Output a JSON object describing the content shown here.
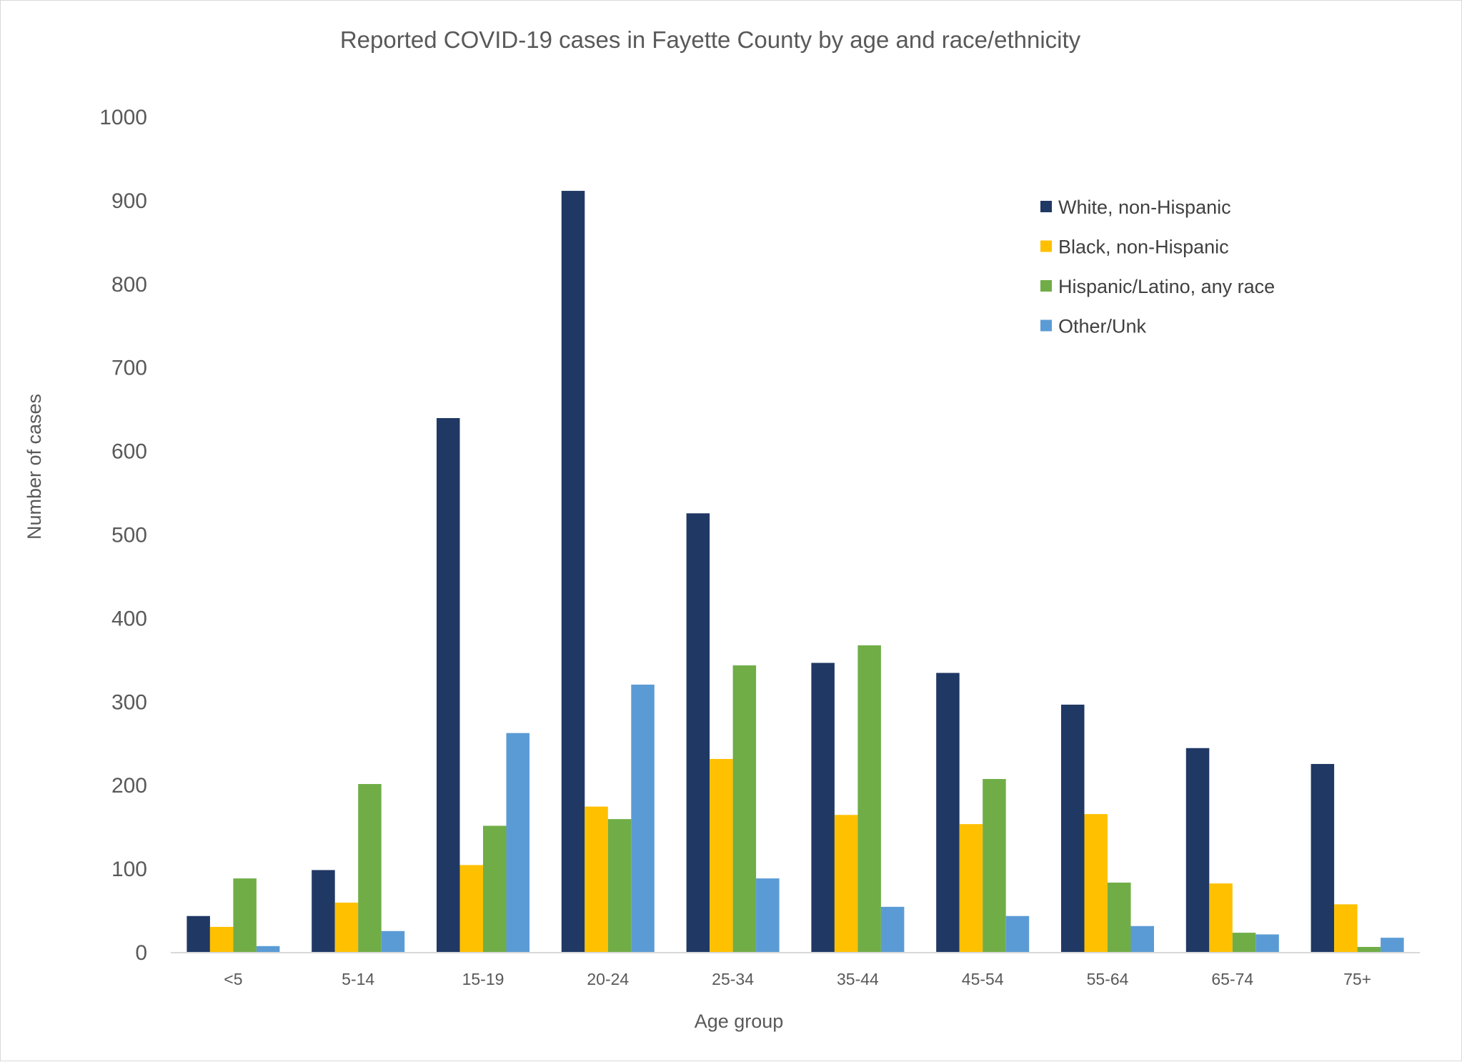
{
  "chart_data": {
    "type": "bar",
    "title": "Reported COVID-19 cases in Fayette County by age and race/ethnicity",
    "xlabel": "Age group",
    "ylabel": "Number of cases",
    "ylim": [
      0,
      1000
    ],
    "yticks": [
      0,
      100,
      200,
      300,
      400,
      500,
      600,
      700,
      800,
      900,
      1000
    ],
    "grid": false,
    "legend_position": "top-right",
    "categories": [
      "<5",
      "5-14",
      "15-19",
      "20-24",
      "25-34",
      "35-44",
      "45-54",
      "55-64",
      "65-74",
      "75+"
    ],
    "series": [
      {
        "name": "White, non-Hispanic",
        "color": "#203864",
        "values": [
          43,
          98,
          639,
          911,
          525,
          346,
          334,
          296,
          244,
          225
        ]
      },
      {
        "name": "Black, non-Hispanic",
        "color": "#FFC000",
        "values": [
          30,
          59,
          104,
          174,
          231,
          164,
          153,
          165,
          82,
          57
        ]
      },
      {
        "name": "Hispanic/Latino, any race",
        "color": "#70AD47",
        "values": [
          88,
          201,
          151,
          159,
          343,
          367,
          207,
          83,
          23,
          6
        ]
      },
      {
        "name": "Other/Unk",
        "color": "#5B9BD5",
        "values": [
          7,
          25,
          262,
          320,
          88,
          54,
          43,
          31,
          21,
          17
        ]
      }
    ]
  }
}
